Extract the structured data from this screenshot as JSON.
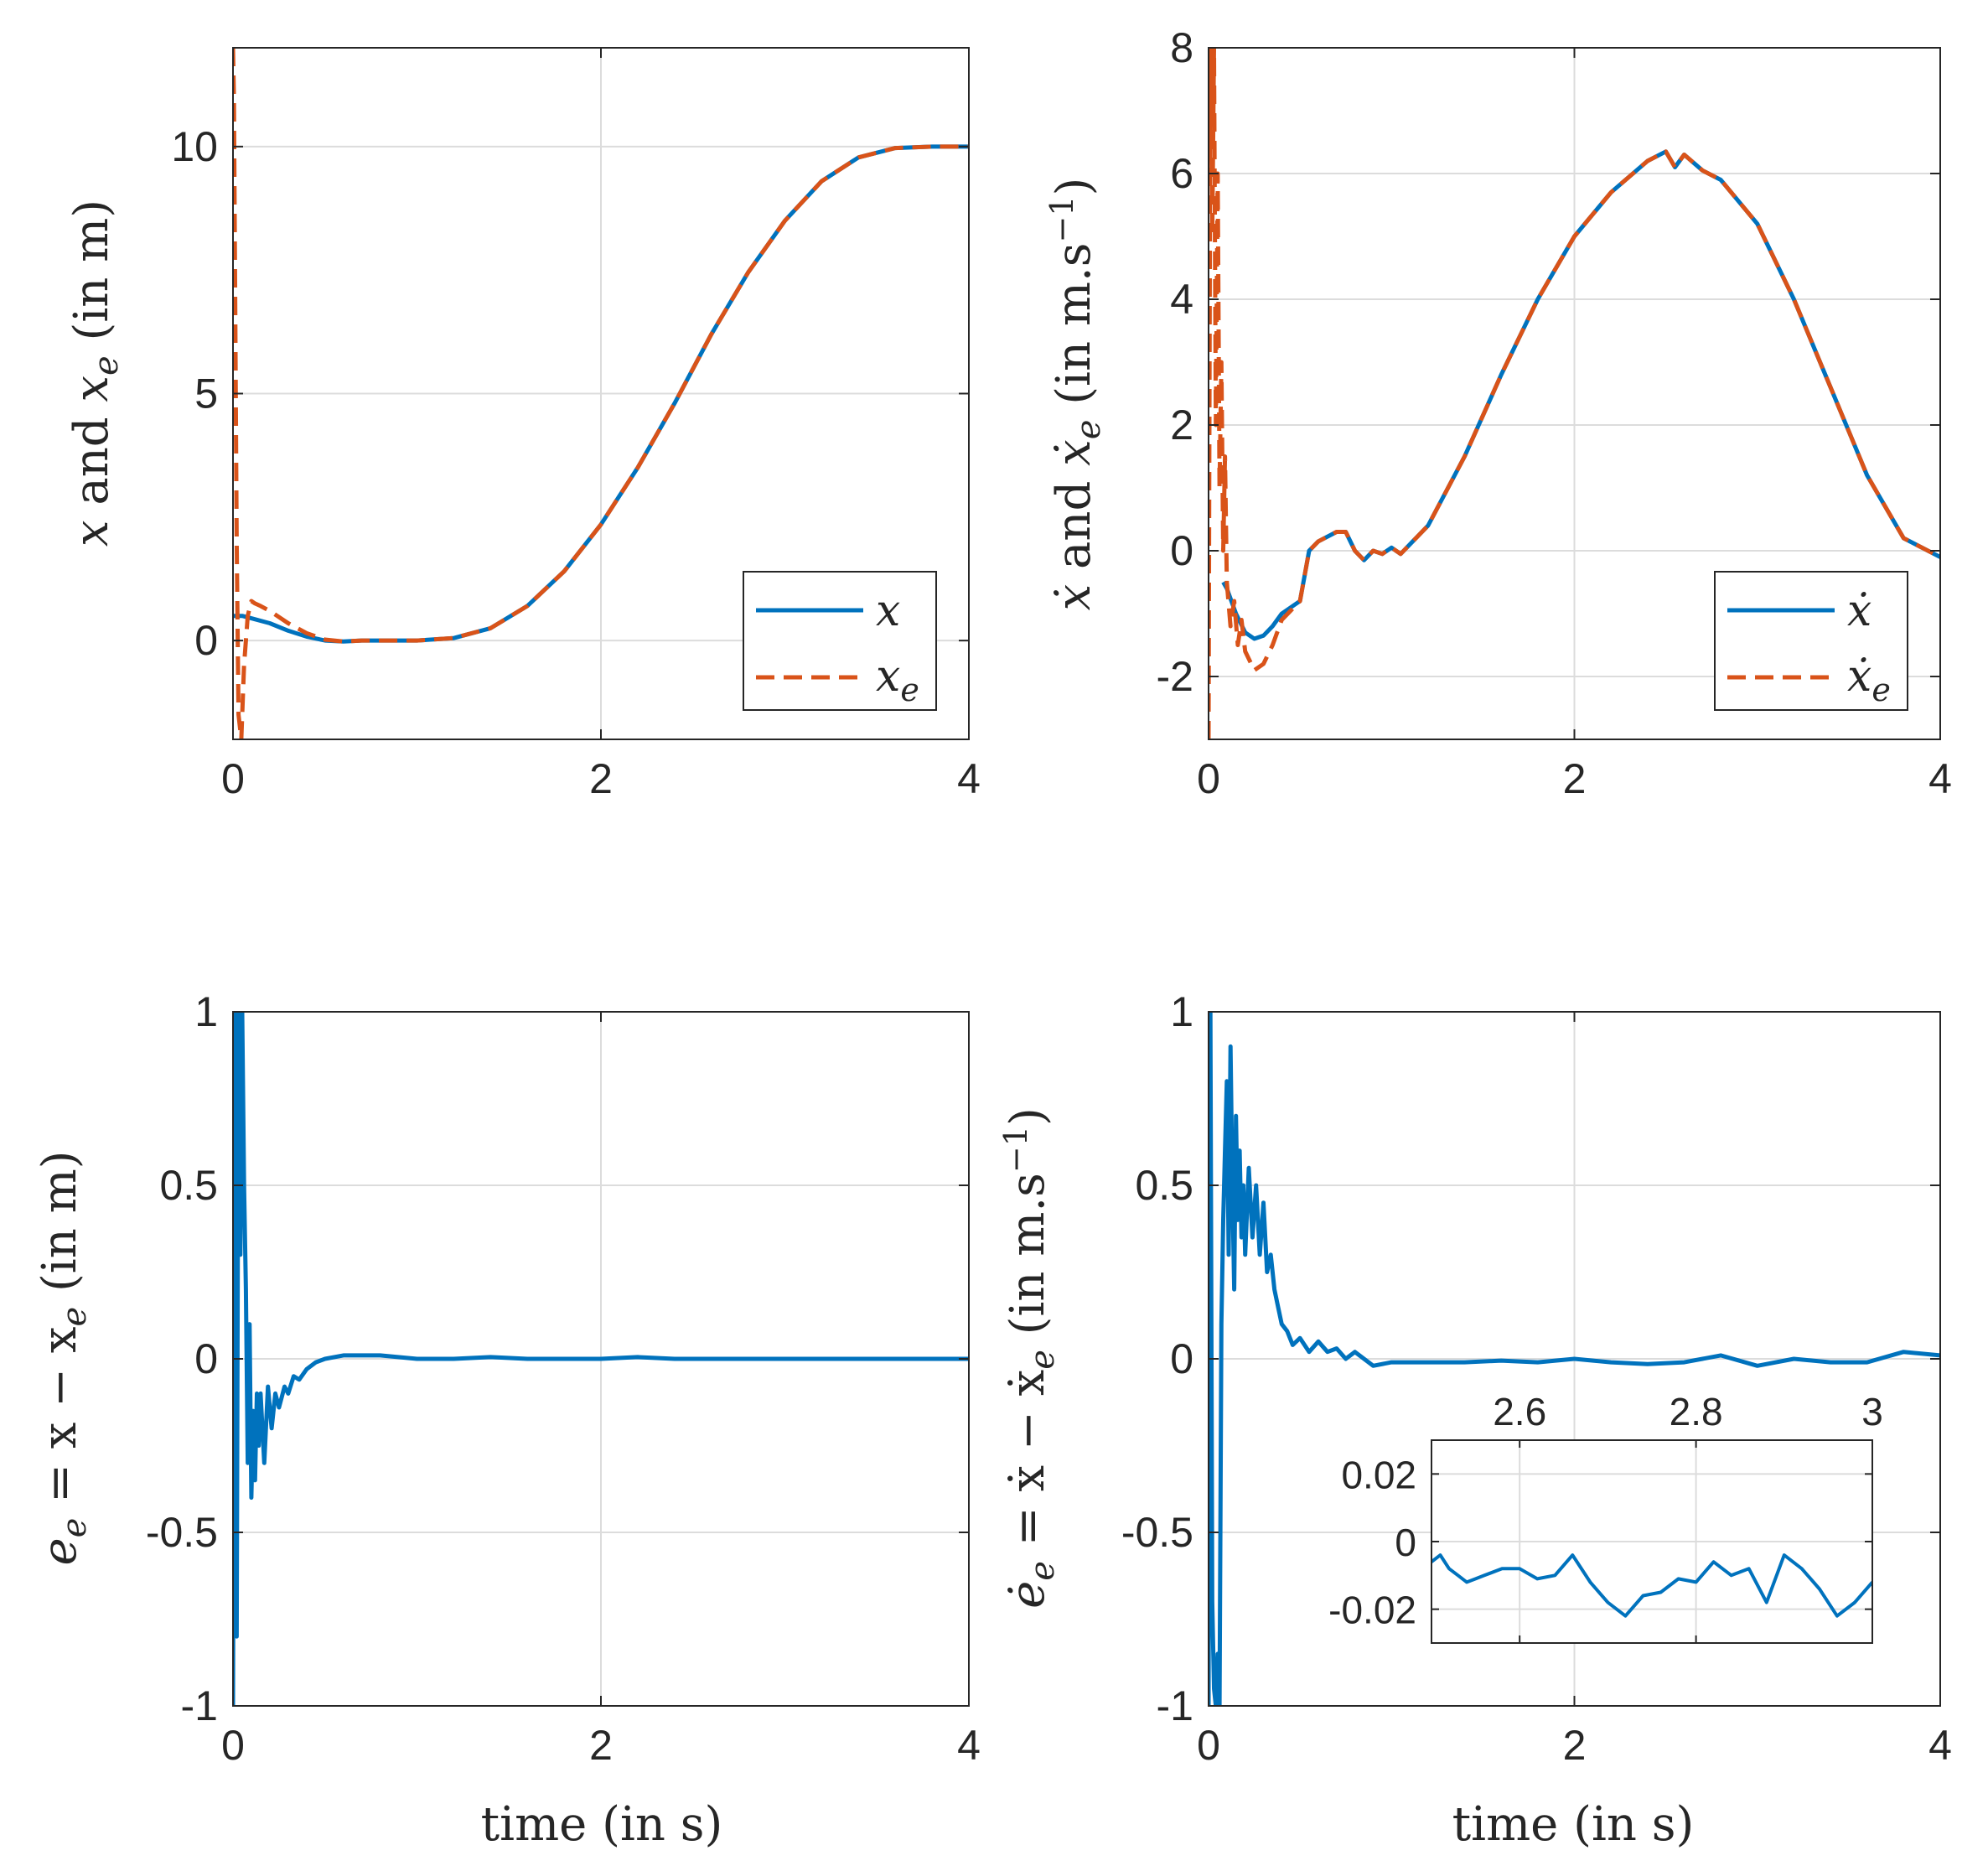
{
  "colors": {
    "x": "#0072BD",
    "xe": "#D95319",
    "grid": "#dcdcdc",
    "axis": "#262626"
  },
  "chart_data": [
    {
      "type": "line",
      "ylabel": "x and x_e (in m)",
      "ylabel_parts": {
        "a": "x",
        "and": " and ",
        "b": "x",
        "b_sub": "e",
        "unit": " (in m)"
      },
      "xlim": [
        0,
        4
      ],
      "ylim": [
        -2,
        12
      ],
      "xticks": [
        "0",
        "2",
        "4"
      ],
      "yticks": [
        "0",
        "5",
        "10"
      ],
      "legend": {
        "placement": "bottom-right",
        "entries": [
          "x",
          "x_e"
        ],
        "labels": {
          "x": "x",
          "xe": "x",
          "xe_sub": "e"
        }
      },
      "grid": true,
      "series": [
        {
          "name": "x",
          "style": "solid",
          "x": [
            0,
            0.02,
            0.05,
            0.1,
            0.2,
            0.3,
            0.4,
            0.5,
            0.6,
            0.7,
            0.8,
            1.0,
            1.2,
            1.4,
            1.6,
            1.8,
            2.0,
            2.2,
            2.4,
            2.6,
            2.8,
            3.0,
            3.2,
            3.4,
            3.6,
            3.8,
            4.0
          ],
          "y": [
            0.5,
            0.5,
            0.5,
            0.45,
            0.35,
            0.2,
            0.08,
            0.0,
            -0.02,
            0.0,
            0.0,
            0.0,
            0.05,
            0.25,
            0.7,
            1.4,
            2.35,
            3.5,
            4.8,
            6.2,
            7.45,
            8.5,
            9.3,
            9.78,
            9.97,
            10.0,
            10.0
          ]
        },
        {
          "name": "x_e",
          "style": "dashed",
          "x": [
            0,
            0.005,
            0.012,
            0.02,
            0.03,
            0.045,
            0.06,
            0.08,
            0.1,
            0.12,
            0.15,
            0.2,
            0.3,
            0.4,
            0.5,
            0.6,
            0.7,
            0.8,
            1.0,
            1.2,
            1.4,
            1.6,
            1.8,
            2.0,
            2.2,
            2.4,
            2.6,
            2.8,
            3.0,
            3.2,
            3.4,
            3.6,
            3.8,
            4.0
          ],
          "y": [
            12,
            11,
            7,
            2,
            -1.5,
            -2,
            -0.5,
            0.5,
            0.8,
            0.75,
            0.7,
            0.6,
            0.35,
            0.15,
            0.02,
            -0.02,
            0.0,
            0.0,
            0.0,
            0.05,
            0.25,
            0.7,
            1.4,
            2.35,
            3.5,
            4.8,
            6.2,
            7.45,
            8.5,
            9.3,
            9.78,
            9.97,
            10.0,
            10.0
          ]
        }
      ]
    },
    {
      "type": "line",
      "ylabel": "ẋ and ẋ_e (in m.s⁻¹)",
      "ylabel_parts": {
        "a": "ẋ",
        "and": " and ",
        "b": "ẋ",
        "b_sub": "e",
        "unit": " (in m.s",
        "sup": "−1",
        "close": ")"
      },
      "xlim": [
        0,
        4
      ],
      "ylim": [
        -3,
        8
      ],
      "xticks": [
        "0",
        "2",
        "4"
      ],
      "yticks": [
        "-2",
        "0",
        "2",
        "4",
        "6",
        "8"
      ],
      "legend": {
        "placement": "bottom-right",
        "entries": [
          "ẋ",
          "ẋ_e"
        ],
        "labels": {
          "x": "ẋ",
          "xe": "ẋ",
          "xe_sub": "e"
        }
      },
      "grid": true,
      "series": [
        {
          "name": "ẋ",
          "style": "solid",
          "x": [
            0.08,
            0.1,
            0.15,
            0.2,
            0.25,
            0.3,
            0.35,
            0.4,
            0.5,
            0.55,
            0.6,
            0.7,
            0.75,
            0.8,
            0.85,
            0.9,
            0.95,
            1.0,
            1.05,
            1.1,
            1.2,
            1.4,
            1.6,
            1.8,
            2.0,
            2.2,
            2.4,
            2.5,
            2.55,
            2.6,
            2.7,
            2.8,
            3.0,
            3.2,
            3.4,
            3.6,
            3.8,
            4.0
          ],
          "y": [
            -0.5,
            -0.6,
            -1.0,
            -1.3,
            -1.4,
            -1.35,
            -1.2,
            -1.0,
            -0.8,
            0.0,
            0.15,
            0.3,
            0.3,
            0.0,
            -0.15,
            0.0,
            -0.05,
            0.05,
            -0.05,
            0.1,
            0.4,
            1.5,
            2.8,
            4.0,
            5.0,
            5.7,
            6.2,
            6.35,
            6.1,
            6.3,
            6.05,
            5.9,
            5.2,
            4.0,
            2.6,
            1.2,
            0.2,
            -0.1
          ]
        },
        {
          "name": "ẋ_e",
          "style": "dashed",
          "x": [
            0,
            0.01,
            0.02,
            0.03,
            0.04,
            0.05,
            0.06,
            0.07,
            0.08,
            0.09,
            0.1,
            0.12,
            0.14,
            0.16,
            0.18,
            0.2,
            0.25,
            0.3,
            0.35,
            0.4,
            0.5,
            0.55,
            0.6,
            0.7,
            0.75,
            0.8,
            0.85,
            0.9,
            0.95,
            1.0,
            1.05,
            1.1,
            1.2,
            1.4,
            1.6,
            1.8,
            2.0,
            2.2,
            2.4,
            2.5,
            2.55,
            2.6,
            2.7,
            2.8,
            3.0,
            3.2,
            3.4,
            3.6,
            3.8,
            4.0
          ],
          "y": [
            -3,
            8,
            5,
            8,
            2,
            6,
            1,
            3,
            0,
            1.5,
            -0.5,
            -1.2,
            -0.8,
            -1.5,
            -1.1,
            -1.6,
            -1.9,
            -1.8,
            -1.5,
            -1.1,
            -0.8,
            0.0,
            0.15,
            0.3,
            0.3,
            0.0,
            -0.15,
            0.0,
            -0.05,
            0.05,
            -0.05,
            0.1,
            0.4,
            1.5,
            2.8,
            4.0,
            5.0,
            5.7,
            6.2,
            6.35,
            6.1,
            6.3,
            6.05,
            5.9,
            5.2,
            4.0,
            2.6,
            1.2,
            0.2,
            -0.1
          ]
        }
      ]
    },
    {
      "type": "line",
      "ylabel": "e_e = x − x_e (in m)",
      "ylabel_parts": {
        "a": "e",
        "a_sub": "e",
        "eq": " = x − x",
        "b_sub": "e",
        "unit": " (in m)"
      },
      "xlabel": "time (in s)",
      "xlim": [
        0,
        4
      ],
      "ylim": [
        -1,
        1
      ],
      "xticks": [
        "0",
        "2",
        "4"
      ],
      "yticks": [
        "-1",
        "-0.5",
        "0",
        "0.5",
        "1"
      ],
      "grid": true,
      "series": [
        {
          "name": "e_e",
          "style": "solid",
          "x": [
            0,
            0.01,
            0.02,
            0.03,
            0.04,
            0.05,
            0.06,
            0.07,
            0.08,
            0.09,
            0.1,
            0.11,
            0.12,
            0.13,
            0.14,
            0.15,
            0.17,
            0.19,
            0.21,
            0.23,
            0.25,
            0.28,
            0.3,
            0.33,
            0.36,
            0.4,
            0.45,
            0.5,
            0.6,
            0.8,
            1.0,
            1.2,
            1.4,
            1.6,
            1.8,
            2.0,
            2.2,
            2.4,
            2.6,
            2.8,
            3.0,
            3.2,
            3.4,
            3.6,
            3.8,
            4.0
          ],
          "y": [
            -1,
            1,
            -0.8,
            1,
            0.3,
            1,
            0.5,
            0.2,
            -0.3,
            0.1,
            -0.4,
            -0.15,
            -0.35,
            -0.1,
            -0.25,
            -0.1,
            -0.3,
            -0.08,
            -0.2,
            -0.1,
            -0.14,
            -0.08,
            -0.1,
            -0.05,
            -0.06,
            -0.03,
            -0.01,
            0.0,
            0.01,
            0.01,
            0.0,
            0.0,
            0.005,
            0.0,
            0.0,
            0.0,
            0.005,
            0.0,
            0.0,
            0.0,
            0.0,
            0.0,
            0.0,
            0.0,
            0.0,
            0.0
          ]
        }
      ]
    },
    {
      "type": "line",
      "ylabel": "ė_e = ẋ − ẋ_e (in m.s⁻¹)",
      "ylabel_parts": {
        "a": "ė",
        "a_sub": "e",
        "eq": " = ẋ − ẋ",
        "b_sub": "e",
        "unit": " (in m.s",
        "sup": "−1",
        "close": ")"
      },
      "xlabel": "time (in s)",
      "xlim": [
        0,
        4
      ],
      "ylim": [
        -1,
        1
      ],
      "xticks": [
        "0",
        "2",
        "4"
      ],
      "yticks": [
        "-1",
        "-0.5",
        "0",
        "0.5",
        "1"
      ],
      "grid": true,
      "series": [
        {
          "name": "ė_e",
          "style": "solid",
          "x": [
            0,
            0.01,
            0.02,
            0.03,
            0.04,
            0.05,
            0.06,
            0.07,
            0.08,
            0.09,
            0.1,
            0.11,
            0.12,
            0.13,
            0.14,
            0.15,
            0.16,
            0.17,
            0.18,
            0.19,
            0.2,
            0.22,
            0.24,
            0.26,
            0.28,
            0.3,
            0.32,
            0.34,
            0.36,
            0.38,
            0.4,
            0.43,
            0.46,
            0.5,
            0.55,
            0.6,
            0.65,
            0.7,
            0.75,
            0.8,
            0.85,
            0.9,
            1.0,
            1.2,
            1.4,
            1.6,
            1.8,
            2.0,
            2.2,
            2.4,
            2.6,
            2.8,
            3.0,
            3.2,
            3.4,
            3.6,
            3.8,
            4.0
          ],
          "y": [
            -1,
            1,
            -0.7,
            -0.95,
            -1,
            -0.85,
            -1,
            0.1,
            0.4,
            0.6,
            0.8,
            0.3,
            0.9,
            0.5,
            0.2,
            0.7,
            0.4,
            0.6,
            0.35,
            0.5,
            0.3,
            0.55,
            0.35,
            0.5,
            0.3,
            0.45,
            0.25,
            0.3,
            0.2,
            0.15,
            0.1,
            0.08,
            0.04,
            0.06,
            0.02,
            0.05,
            0.02,
            0.03,
            0.0,
            0.02,
            0.0,
            -0.02,
            -0.01,
            -0.01,
            -0.01,
            -0.005,
            -0.01,
            0.0,
            -0.01,
            -0.015,
            -0.01,
            0.01,
            -0.02,
            0.0,
            -0.01,
            -0.01,
            0.02,
            0.01
          ]
        }
      ],
      "inset": {
        "xlim": [
          2.5,
          3.0
        ],
        "ylim": [
          -0.03,
          0.03
        ],
        "xticks": [
          "2.6",
          "2.8",
          "3"
        ],
        "yticks": [
          "-0.02",
          "0",
          "0.02"
        ],
        "grid": true,
        "x": [
          2.5,
          2.51,
          2.52,
          2.53,
          2.54,
          2.55,
          2.56,
          2.58,
          2.6,
          2.62,
          2.64,
          2.66,
          2.68,
          2.7,
          2.72,
          2.74,
          2.76,
          2.78,
          2.8,
          2.82,
          2.84,
          2.86,
          2.88,
          2.9,
          2.92,
          2.94,
          2.96,
          2.98,
          3.0
        ],
        "y": [
          -0.006,
          -0.004,
          -0.008,
          -0.01,
          -0.012,
          -0.011,
          -0.01,
          -0.008,
          -0.008,
          -0.011,
          -0.01,
          -0.004,
          -0.012,
          -0.018,
          -0.022,
          -0.016,
          -0.015,
          -0.011,
          -0.012,
          -0.006,
          -0.01,
          -0.008,
          -0.018,
          -0.004,
          -0.008,
          -0.014,
          -0.022,
          -0.018,
          -0.012
        ]
      }
    }
  ]
}
